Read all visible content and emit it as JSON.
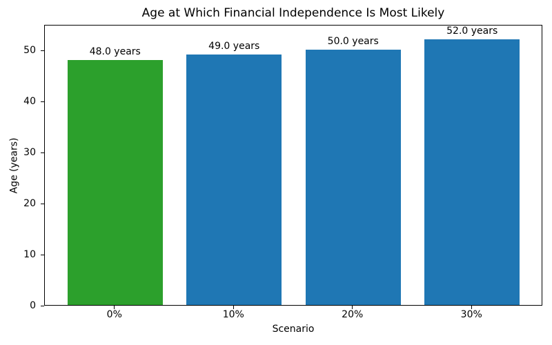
{
  "chart_data": {
    "type": "bar",
    "title": "Age at Which Financial Independence Is Most Likely",
    "xlabel": "Scenario",
    "ylabel": "Age (years)",
    "categories": [
      "0%",
      "10%",
      "20%",
      "30%"
    ],
    "values": [
      48.0,
      49.0,
      50.0,
      52.0
    ],
    "bar_labels": [
      "48.0 years",
      "49.0 years",
      "50.0 years",
      "52.0 years"
    ],
    "bar_colors": [
      "#2ca02c",
      "#1f77b4",
      "#1f77b4",
      "#1f77b4"
    ],
    "yticks": [
      0,
      10,
      20,
      30,
      40,
      50
    ],
    "ylim": [
      0,
      55
    ],
    "xlim": [
      -0.59,
      3.59
    ],
    "bar_width": 0.8,
    "grid": false,
    "legend_position": "none",
    "spine_color": "#000000",
    "background_color": "#ffffff"
  }
}
